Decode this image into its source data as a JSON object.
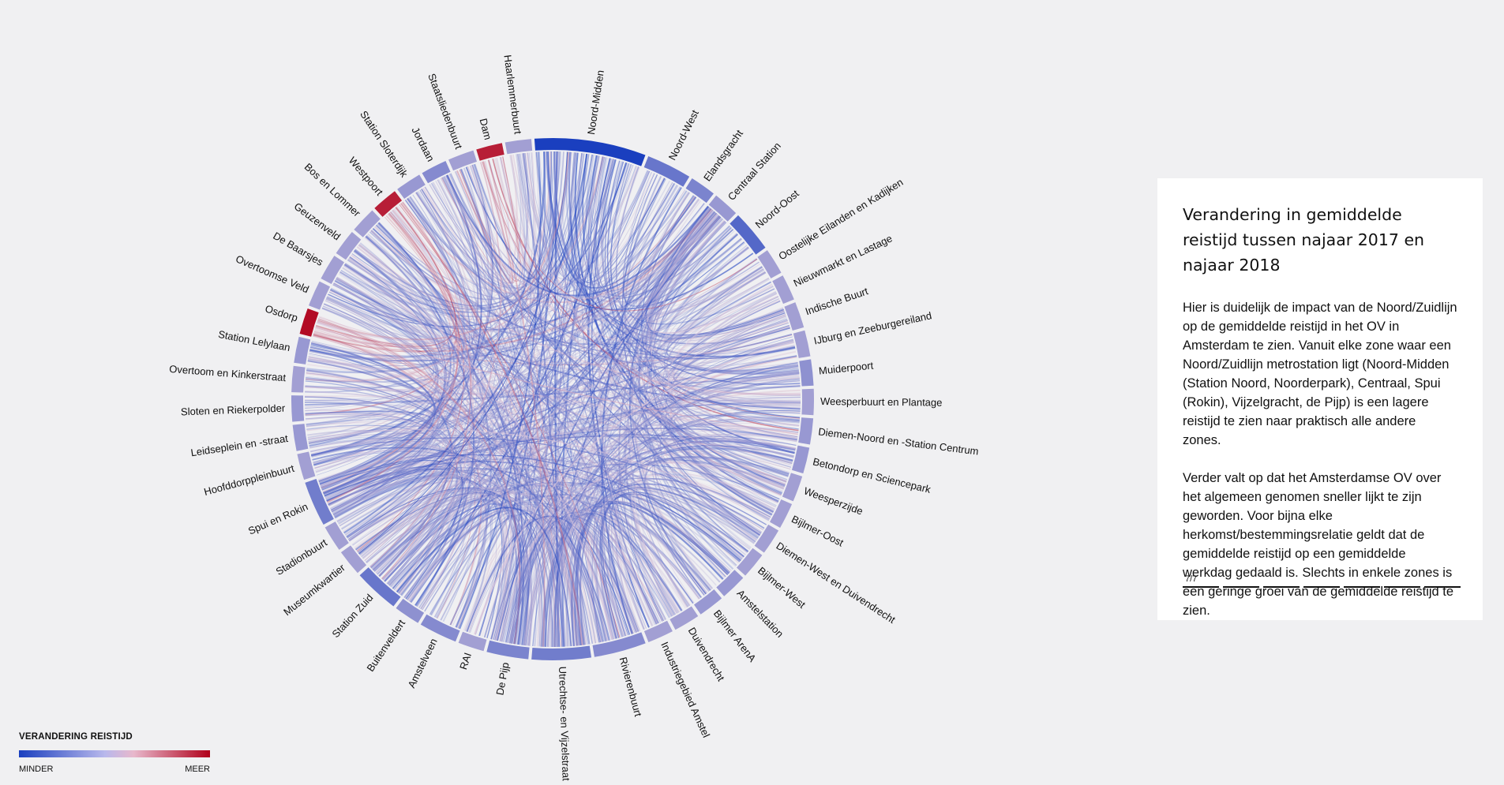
{
  "zones": [
    {
      "name": "Noord-Midden",
      "change": -1.0
    },
    {
      "name": "Noord-West",
      "change": -0.6
    },
    {
      "name": "Elandsgracht",
      "change": -0.5
    },
    {
      "name": "Centraal Station",
      "change": -0.35
    },
    {
      "name": "Noord-Oost",
      "change": -0.7
    },
    {
      "name": "Oostelijke Eilanden en Kadijken",
      "change": -0.3
    },
    {
      "name": "Nieuwmarkt en Lastage",
      "change": -0.3
    },
    {
      "name": "Indische Buurt",
      "change": -0.3
    },
    {
      "name": "IJburg en Zeeburgereiland",
      "change": -0.3
    },
    {
      "name": "Muiderpoort",
      "change": -0.4
    },
    {
      "name": "Weesperbuurt en Plantage",
      "change": -0.3
    },
    {
      "name": "Diemen-Noord en -Station Centrum",
      "change": -0.35
    },
    {
      "name": "Betondorp en Sciencepark",
      "change": -0.35
    },
    {
      "name": "Weesperzijde",
      "change": -0.3
    },
    {
      "name": "Bijlmer-Oost",
      "change": -0.3
    },
    {
      "name": "Diemen-West en Duivendrecht",
      "change": -0.3
    },
    {
      "name": "Bijlmer-West",
      "change": -0.3
    },
    {
      "name": "Amstelstation",
      "change": -0.35
    },
    {
      "name": "Bijlmer ArenA",
      "change": -0.35
    },
    {
      "name": "Duivendrecht",
      "change": -0.3
    },
    {
      "name": "Industriegebied Amstel",
      "change": -0.3
    },
    {
      "name": "Rivierenbuurt",
      "change": -0.45
    },
    {
      "name": "Utrechtse- en Vijzelstraat",
      "change": -0.55
    },
    {
      "name": "De Pijp",
      "change": -0.5
    },
    {
      "name": "RAI",
      "change": -0.3
    },
    {
      "name": "Amstelveen",
      "change": -0.45
    },
    {
      "name": "Buitenveldert",
      "change": -0.4
    },
    {
      "name": "Station Zuid",
      "change": -0.6
    },
    {
      "name": "Museumkwartier",
      "change": -0.3
    },
    {
      "name": "Stadionbuurt",
      "change": -0.3
    },
    {
      "name": "Spui en Rokin",
      "change": -0.55
    },
    {
      "name": "Hoofddorppleinbuurt",
      "change": -0.3
    },
    {
      "name": "Leidseplein en -straat",
      "change": -0.35
    },
    {
      "name": "Sloten en Riekerpolder",
      "change": -0.35
    },
    {
      "name": "Overtoom en Kinkerstraat",
      "change": -0.3
    },
    {
      "name": "Station Lelylaan",
      "change": -0.35
    },
    {
      "name": "Osdorp",
      "change": 0.95
    },
    {
      "name": "Overtoomse Veld",
      "change": -0.3
    },
    {
      "name": "De Baarsjes",
      "change": -0.3
    },
    {
      "name": "Geuzenveld",
      "change": -0.3
    },
    {
      "name": "Bos en Lommer",
      "change": -0.3
    },
    {
      "name": "Westpoort",
      "change": 0.85
    },
    {
      "name": "Station Sloterdijk",
      "change": -0.35
    },
    {
      "name": "Jordaan",
      "change": -0.45
    },
    {
      "name": "Staatsliedenbuurt",
      "change": -0.3
    },
    {
      "name": "Dam",
      "change": 0.85
    },
    {
      "name": "Haarlemmerbuurt",
      "change": -0.3
    }
  ],
  "colors": {
    "minder": "#1a3fbf",
    "mid": "#dcc8dc",
    "meer": "#b0001a"
  },
  "panel": {
    "title": "Verandering in gemiddelde reistijd tussen najaar 2017 en najaar 2018",
    "paragraph1": "Hier is duidelijk de impact van de Noord/Zuidlijn op de gemiddelde reistijd in het OV in Amsterdam te zien. Vanuit elke zone waar een Noord/Zuidlijn metrostation ligt (Noord-Midden (Station Noord, Noorderpark), Centraal, Spui (Rokin), Vijzelgracht, de Pijp) is een lagere reistijd te zien naar praktisch alle andere zones.",
    "paragraph2": "Verder valt op dat het Amsterdamse OV over het algemeen genomen sneller lijkt te zijn geworden. Voor bijna elke herkomst/bestemmingsrelatie geldt dat de gemiddelde reistijd op een gemiddelde werkdag gedaald is. Slechts in enkele zones is een geringe groei van de gemiddelde reistijd te zien.",
    "step_counter": "7/7",
    "current_step": 7,
    "total_steps": 7
  },
  "legend": {
    "title": "VERANDERING REISTIJD",
    "low_label": "MINDER",
    "high_label": "MEER"
  }
}
